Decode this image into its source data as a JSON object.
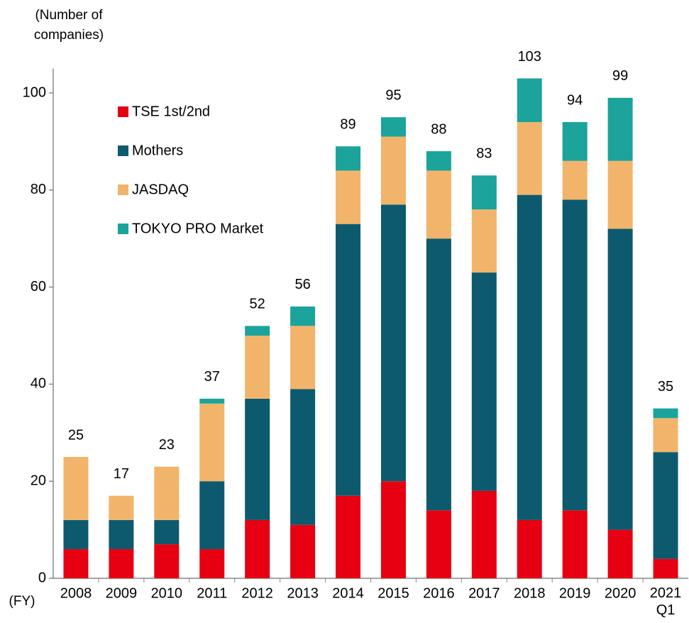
{
  "chart_data": {
    "type": "stacked_bar",
    "ylabel": "(Number of companies)",
    "xlabel": "(FY)",
    "categories": [
      "2008",
      "2009",
      "2010",
      "2011",
      "2012",
      "2013",
      "2014",
      "2015",
      "2016",
      "2017",
      "2018",
      "2019",
      "2020",
      "2021\nQ1"
    ],
    "series": [
      {
        "name": "TSE 1st/2nd",
        "color": "#e60012",
        "values": [
          6,
          6,
          7,
          6,
          12,
          11,
          17,
          20,
          14,
          18,
          12,
          14,
          10,
          4
        ]
      },
      {
        "name": "Mothers",
        "color": "#0d5a6e",
        "values": [
          6,
          6,
          5,
          14,
          25,
          28,
          56,
          57,
          56,
          45,
          67,
          64,
          62,
          22
        ]
      },
      {
        "name": "JASDAQ",
        "color": "#f2b46a",
        "values": [
          13,
          5,
          11,
          16,
          13,
          13,
          11,
          14,
          14,
          13,
          15,
          8,
          14,
          7
        ]
      },
      {
        "name": "TOKYO PRO Market",
        "color": "#1ba39c",
        "values": [
          0,
          0,
          0,
          1,
          2,
          4,
          5,
          4,
          4,
          7,
          9,
          8,
          13,
          2
        ]
      }
    ],
    "totals": [
      25,
      17,
      23,
      37,
      52,
      56,
      89,
      95,
      88,
      83,
      103,
      94,
      99,
      35
    ],
    "ylim": [
      0,
      105
    ],
    "yticks": [
      0,
      20,
      40,
      60,
      80,
      100
    ],
    "grid": false
  }
}
